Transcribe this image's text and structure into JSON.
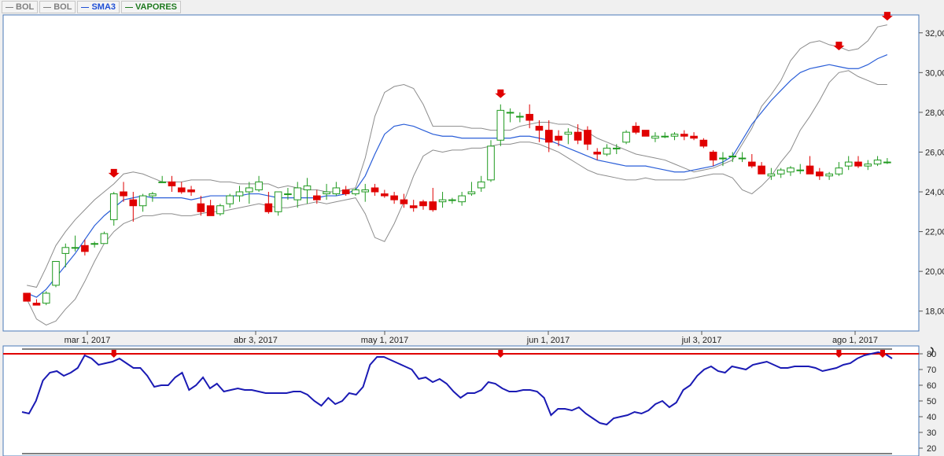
{
  "legend": [
    {
      "label": "BOL",
      "color": "#808080"
    },
    {
      "label": "BOL",
      "color": "#808080"
    },
    {
      "label": "SMA3",
      "color": "#1f4fd6"
    },
    {
      "label": "VAPORES",
      "color": "#1f7a1f"
    }
  ],
  "chart_data": [
    {
      "type": "candlestick",
      "title": "",
      "x_ticks": [
        "mar 1, 2017",
        "abr 3, 2017",
        "may 1, 2017",
        "jun 1, 2017",
        "jul 3, 2017",
        "ago 1, 2017"
      ],
      "y_ticks": [
        "18,00",
        "20,00",
        "22,00",
        "24,00",
        "26,00",
        "28,00",
        "30,00",
        "32,00"
      ],
      "ylim": [
        17.0,
        32.9
      ],
      "colors": {
        "up": "#1f9a1f",
        "down": "#e00000",
        "sma": "#2a5ed8",
        "bands": "#8c8c8c",
        "signal": "#e00000"
      },
      "series": [
        {
          "name": "BOL",
          "type": "upper-band",
          "values": [
            19.3,
            19.2,
            20.2,
            21.3,
            22.0,
            22.6,
            23.1,
            23.6,
            24.0,
            24.4,
            24.9,
            25.0,
            24.9,
            24.7,
            24.5,
            24.5,
            24.5,
            24.6,
            24.6,
            24.6,
            24.5,
            24.5,
            24.4,
            24.4,
            24.4,
            24.4,
            24.2,
            24.3,
            24.2,
            24.1,
            24.1,
            24.0,
            24.0,
            24.1,
            24.2,
            25.7,
            27.8,
            29.0,
            29.3,
            29.4,
            29.2,
            28.4,
            27.3,
            27.3,
            27.3,
            27.3,
            27.2,
            27.2,
            27.1,
            27.1,
            27.1,
            27.3,
            27.4,
            27.5,
            27.5,
            27.4,
            27.4,
            27.2,
            27.0,
            26.7,
            26.5,
            26.3,
            26.1,
            25.9,
            25.8,
            25.7,
            25.6,
            25.4,
            25.2,
            25.0,
            25.1,
            25.2,
            25.4,
            25.6,
            26.4,
            27.2,
            28.3,
            28.9,
            29.6,
            30.6,
            31.2,
            31.5,
            31.6,
            31.4,
            31.3,
            31.1,
            31.2,
            31.6,
            32.3,
            32.4
          ]
        },
        {
          "name": "BOL",
          "type": "lower-band",
          "values": [
            18.6,
            17.6,
            17.3,
            17.5,
            18.1,
            18.6,
            19.5,
            20.5,
            21.4,
            22.0,
            22.4,
            22.6,
            22.8,
            22.8,
            22.9,
            22.9,
            22.8,
            22.8,
            22.9,
            23.0,
            23.0,
            23.1,
            23.2,
            23.3,
            23.4,
            23.3,
            23.2,
            23.2,
            23.3,
            23.4,
            23.5,
            23.4,
            23.5,
            23.6,
            23.7,
            22.9,
            21.7,
            21.5,
            22.4,
            23.5,
            24.8,
            25.8,
            26.1,
            26.0,
            26.1,
            26.1,
            26.2,
            26.2,
            26.3,
            26.4,
            26.4,
            26.5,
            26.5,
            26.4,
            26.2,
            26.0,
            25.7,
            25.4,
            25.1,
            24.9,
            24.8,
            24.7,
            24.6,
            24.6,
            24.7,
            24.6,
            24.6,
            24.6,
            24.6,
            24.7,
            24.8,
            24.9,
            24.9,
            24.7,
            24.1,
            23.9,
            24.3,
            24.8,
            25.5,
            26.1,
            27.1,
            27.8,
            28.6,
            29.5,
            30.0,
            30.1,
            29.8,
            29.6,
            29.4,
            29.4
          ]
        },
        {
          "name": "SMA3",
          "type": "sma",
          "values": [
            18.9,
            18.7,
            19.1,
            19.7,
            20.3,
            20.9,
            21.6,
            22.3,
            22.8,
            23.2,
            23.6,
            23.7,
            23.8,
            23.7,
            23.7,
            23.7,
            23.7,
            23.6,
            23.7,
            23.8,
            23.8,
            23.8,
            23.8,
            23.9,
            23.9,
            23.8,
            23.7,
            23.7,
            23.7,
            23.7,
            23.7,
            23.8,
            23.8,
            23.9,
            24.1,
            24.8,
            25.9,
            26.9,
            27.3,
            27.4,
            27.3,
            27.1,
            26.9,
            26.8,
            26.8,
            26.7,
            26.7,
            26.7,
            26.7,
            26.7,
            26.7,
            26.8,
            26.8,
            26.7,
            26.6,
            26.4,
            26.2,
            26.0,
            25.8,
            25.6,
            25.5,
            25.4,
            25.3,
            25.3,
            25.3,
            25.2,
            25.1,
            25.0,
            25.0,
            25.1,
            25.2,
            25.3,
            25.5,
            25.8,
            26.6,
            27.4,
            28.0,
            28.6,
            29.1,
            29.6,
            30.0,
            30.2,
            30.3,
            30.4,
            30.3,
            30.2,
            30.2,
            30.4,
            30.7,
            30.9
          ]
        },
        {
          "name": "VAPORES",
          "type": "candle",
          "ohlc": [
            [
              18.9,
              18.9,
              18.5,
              18.5
            ],
            [
              18.4,
              18.6,
              18.3,
              18.3
            ],
            [
              18.4,
              19.0,
              18.3,
              18.9
            ],
            [
              19.3,
              20.5,
              19.2,
              20.5
            ],
            [
              20.9,
              21.4,
              20.2,
              21.2
            ],
            [
              21.2,
              21.8,
              21.0,
              21.2
            ],
            [
              21.3,
              21.6,
              20.8,
              21.0
            ],
            [
              21.4,
              21.5,
              21.2,
              21.4
            ],
            [
              21.4,
              22.0,
              21.4,
              21.9
            ],
            [
              22.6,
              24.0,
              22.3,
              23.9
            ],
            [
              24.0,
              24.5,
              23.5,
              23.8
            ],
            [
              23.6,
              24.0,
              22.5,
              23.3
            ],
            [
              23.3,
              23.9,
              23.0,
              23.8
            ],
            [
              23.8,
              24.0,
              23.5,
              23.9
            ],
            [
              24.5,
              24.8,
              24.5,
              24.5
            ],
            [
              24.5,
              24.8,
              24.0,
              24.3
            ],
            [
              24.2,
              24.5,
              23.9,
              24.0
            ],
            [
              24.1,
              24.3,
              23.8,
              24.0
            ],
            [
              23.4,
              23.8,
              22.8,
              23.0
            ],
            [
              23.3,
              23.6,
              22.8,
              22.8
            ],
            [
              22.9,
              23.4,
              22.8,
              23.3
            ],
            [
              23.4,
              23.9,
              23.2,
              23.8
            ],
            [
              23.8,
              24.3,
              23.5,
              24.0
            ],
            [
              24.0,
              24.5,
              23.4,
              24.2
            ],
            [
              24.1,
              24.8,
              24.0,
              24.5
            ],
            [
              23.4,
              24.0,
              22.9,
              23.0
            ],
            [
              23.0,
              24.0,
              22.8,
              24.0
            ],
            [
              23.9,
              24.2,
              23.6,
              23.9
            ],
            [
              23.6,
              24.5,
              23.2,
              24.2
            ],
            [
              24.1,
              24.7,
              23.4,
              24.3
            ],
            [
              23.8,
              24.1,
              23.4,
              23.6
            ],
            [
              23.9,
              24.4,
              23.6,
              24.0
            ],
            [
              23.9,
              24.5,
              23.8,
              24.2
            ],
            [
              24.1,
              24.3,
              23.8,
              23.9
            ],
            [
              23.9,
              24.2,
              23.8,
              24.1
            ],
            [
              24.0,
              24.4,
              23.5,
              24.1
            ],
            [
              24.2,
              24.4,
              23.8,
              24.0
            ],
            [
              23.9,
              24.1,
              23.7,
              23.8
            ],
            [
              23.8,
              24.0,
              23.4,
              23.6
            ],
            [
              23.6,
              23.9,
              23.2,
              23.4
            ],
            [
              23.3,
              23.6,
              23.0,
              23.2
            ],
            [
              23.5,
              23.6,
              23.1,
              23.3
            ],
            [
              23.5,
              24.2,
              23.0,
              23.1
            ],
            [
              23.5,
              24.0,
              23.2,
              23.6
            ],
            [
              23.6,
              23.7,
              23.4,
              23.6
            ],
            [
              23.5,
              24.0,
              23.3,
              23.8
            ],
            [
              23.9,
              24.5,
              23.8,
              24.0
            ],
            [
              24.2,
              24.8,
              24.0,
              24.5
            ],
            [
              24.6,
              26.6,
              24.5,
              26.3
            ],
            [
              26.6,
              28.4,
              26.3,
              28.1
            ],
            [
              28.0,
              28.2,
              27.5,
              28.0
            ],
            [
              27.8,
              28.0,
              27.5,
              27.8
            ],
            [
              27.9,
              28.4,
              27.2,
              27.6
            ],
            [
              27.3,
              27.6,
              26.5,
              27.1
            ],
            [
              27.1,
              27.6,
              26.0,
              26.5
            ],
            [
              26.8,
              27.1,
              26.3,
              26.6
            ],
            [
              26.9,
              27.2,
              26.4,
              27.0
            ],
            [
              27.0,
              27.4,
              26.4,
              26.6
            ],
            [
              27.1,
              27.3,
              26.1,
              26.4
            ],
            [
              26.0,
              26.2,
              25.6,
              25.9
            ],
            [
              25.9,
              26.4,
              25.8,
              26.2
            ],
            [
              26.2,
              26.4,
              25.9,
              26.2
            ],
            [
              26.5,
              27.1,
              26.4,
              27.0
            ],
            [
              27.3,
              27.5,
              26.9,
              27.0
            ],
            [
              27.1,
              27.1,
              26.8,
              26.8
            ],
            [
              26.7,
              27.0,
              26.5,
              26.8
            ],
            [
              26.8,
              27.0,
              26.7,
              26.8
            ],
            [
              26.8,
              27.0,
              26.6,
              26.9
            ],
            [
              26.9,
              27.1,
              26.6,
              26.8
            ],
            [
              26.8,
              27.0,
              26.6,
              26.7
            ],
            [
              26.6,
              26.7,
              26.2,
              26.3
            ],
            [
              26.0,
              26.1,
              25.3,
              25.6
            ],
            [
              25.7,
              26.0,
              25.3,
              25.7
            ],
            [
              25.8,
              26.0,
              25.5,
              25.8
            ],
            [
              25.7,
              26.0,
              25.5,
              25.7
            ],
            [
              25.5,
              25.9,
              25.2,
              25.3
            ],
            [
              25.3,
              25.5,
              24.9,
              24.9
            ],
            [
              24.8,
              25.2,
              24.6,
              24.9
            ],
            [
              24.9,
              25.2,
              24.7,
              25.1
            ],
            [
              25.0,
              25.3,
              24.8,
              25.2
            ],
            [
              25.1,
              25.4,
              24.9,
              25.1
            ],
            [
              25.3,
              25.8,
              25.0,
              24.9
            ],
            [
              25.0,
              25.2,
              24.6,
              24.8
            ],
            [
              24.8,
              25.0,
              24.6,
              24.9
            ],
            [
              24.9,
              25.5,
              24.8,
              25.2
            ],
            [
              25.3,
              25.8,
              25.1,
              25.5
            ],
            [
              25.5,
              25.8,
              25.2,
              25.3
            ],
            [
              25.3,
              25.6,
              25.1,
              25.4
            ],
            [
              25.4,
              25.8,
              25.3,
              25.6
            ],
            [
              25.5,
              25.7,
              25.4,
              25.5
            ]
          ]
        }
      ],
      "signals": "down arrows"
    },
    {
      "type": "line",
      "title": "",
      "y_ticks": [
        "20",
        "30",
        "40",
        "50",
        "60",
        "70",
        "80"
      ],
      "ylim": [
        15,
        85
      ],
      "reference_line": 80,
      "series": [
        {
          "name": "",
          "values": [
            43,
            42,
            50,
            63,
            68,
            69,
            66,
            68,
            71,
            79,
            77,
            73,
            74,
            75,
            77,
            74,
            71,
            71,
            66,
            59,
            60,
            60,
            65,
            68,
            57,
            60,
            65,
            58,
            61,
            56,
            57,
            58,
            57,
            57,
            56,
            55,
            55,
            55,
            55,
            56,
            56,
            54,
            50,
            47,
            52,
            48,
            50,
            55,
            54,
            59,
            73,
            78,
            78,
            76,
            74,
            72,
            70,
            64,
            65,
            62,
            64,
            61,
            56,
            52,
            55,
            55,
            57,
            62,
            61,
            58,
            56,
            56,
            57,
            57,
            56,
            52,
            41,
            45,
            45,
            44,
            46,
            42,
            39,
            36,
            35,
            39,
            40,
            41,
            43,
            42,
            44,
            48,
            50,
            46,
            49,
            57,
            60,
            66,
            70,
            72,
            69,
            68,
            72,
            71,
            70,
            73,
            74,
            75,
            73,
            71,
            71,
            72,
            72,
            72,
            71,
            69,
            70,
            71,
            73,
            74,
            77,
            79,
            80,
            81,
            80,
            77
          ]
        }
      ],
      "signals": "down arrows"
    }
  ]
}
